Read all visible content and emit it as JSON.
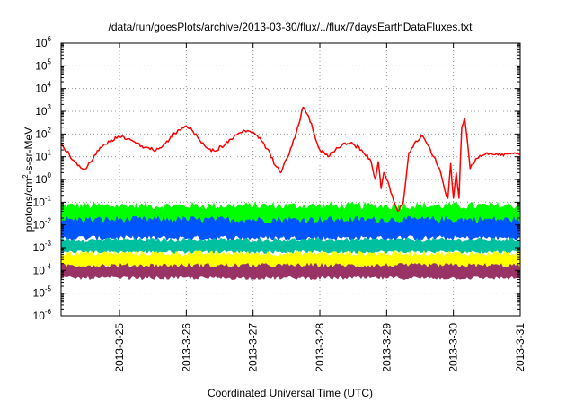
{
  "chart_data": {
    "type": "line",
    "title": "/data/run/goesPlots/archive/2013-03-30/flux/../flux/7daysEarthDataFluxes.txt",
    "xlabel": "Coordinated Universal Time (UTC)",
    "ylabel": "protons/cm²-s-sr-MeV",
    "ylabel_parts": {
      "pre": "protons/cm",
      "sup": "2",
      "post": "-s-sr-MeV"
    },
    "y_scale": "log",
    "ylim": [
      1e-06,
      1000000.0
    ],
    "y_ticks": [
      {
        "value": 1e-06,
        "base": "10",
        "exp": "-6"
      },
      {
        "value": 1e-05,
        "base": "10",
        "exp": "-5"
      },
      {
        "value": 0.0001,
        "base": "10",
        "exp": "-4"
      },
      {
        "value": 0.001,
        "base": "10",
        "exp": "-3"
      },
      {
        "value": 0.01,
        "base": "10",
        "exp": "-2"
      },
      {
        "value": 0.1,
        "base": "10",
        "exp": "-1"
      },
      {
        "value": 1.0,
        "base": "10",
        "exp": "0"
      },
      {
        "value": 10.0,
        "base": "10",
        "exp": "1"
      },
      {
        "value": 100.0,
        "base": "10",
        "exp": "2"
      },
      {
        "value": 1000.0,
        "base": "10",
        "exp": "3"
      },
      {
        "value": 10000.0,
        "base": "10",
        "exp": "4"
      },
      {
        "value": 100000.0,
        "base": "10",
        "exp": "5"
      },
      {
        "value": 1000000.0,
        "base": "10",
        "exp": "6"
      }
    ],
    "xlim": [
      "2013-03-24T03:00",
      "2013-03-31T00:00"
    ],
    "x_ticks": [
      "2013-3-25",
      "2013-3-26",
      "2013-3-27",
      "2013-3-28",
      "2013-3-29",
      "2013-3-30",
      "2013-3-31"
    ],
    "grid": true,
    "series": [
      {
        "color": "#ff0000",
        "style": "line",
        "points": [
          [
            "2013-03-24T03:00",
            40
          ],
          [
            "2013-03-24T06:00",
            12
          ],
          [
            "2013-03-24T09:00",
            4
          ],
          [
            "2013-03-24T12:00",
            3
          ],
          [
            "2013-03-24T15:00",
            12
          ],
          [
            "2013-03-24T18:00",
            30
          ],
          [
            "2013-03-24T21:00",
            55
          ],
          [
            "2013-03-25T00:00",
            75
          ],
          [
            "2013-03-25T04:00",
            55
          ],
          [
            "2013-03-25T08:00",
            30
          ],
          [
            "2013-03-25T12:00",
            20
          ],
          [
            "2013-03-25T15:00",
            25
          ],
          [
            "2013-03-25T18:00",
            60
          ],
          [
            "2013-03-25T21:00",
            150
          ],
          [
            "2013-03-26T00:00",
            230
          ],
          [
            "2013-03-26T02:00",
            150
          ],
          [
            "2013-03-26T05:00",
            50
          ],
          [
            "2013-03-26T08:00",
            22
          ],
          [
            "2013-03-26T10:00",
            18
          ],
          [
            "2013-03-26T14:00",
            35
          ],
          [
            "2013-03-26T18:00",
            90
          ],
          [
            "2013-03-26T21:00",
            140
          ],
          [
            "2013-03-27T00:00",
            120
          ],
          [
            "2013-03-27T03:00",
            50
          ],
          [
            "2013-03-27T06:00",
            15
          ],
          [
            "2013-03-27T08:00",
            4
          ],
          [
            "2013-03-27T10:00",
            2
          ],
          [
            "2013-03-27T12:00",
            8
          ],
          [
            "2013-03-27T14:00",
            30
          ],
          [
            "2013-03-27T16:00",
            200
          ],
          [
            "2013-03-27T18:00",
            1500
          ],
          [
            "2013-03-27T20:00",
            600
          ],
          [
            "2013-03-27T22:00",
            100
          ],
          [
            "2013-03-28T00:00",
            20
          ],
          [
            "2013-03-28T03:00",
            10
          ],
          [
            "2013-03-28T06:00",
            25
          ],
          [
            "2013-03-28T09:00",
            40
          ],
          [
            "2013-03-28T12:00",
            35
          ],
          [
            "2013-03-28T15:00",
            20
          ],
          [
            "2013-03-28T18:00",
            8
          ],
          [
            "2013-03-28T20:00",
            1
          ],
          [
            "2013-03-28T21:00",
            6
          ],
          [
            "2013-03-28T22:00",
            0.4
          ],
          [
            "2013-03-28T23:00",
            2
          ],
          [
            "2013-03-29T00:00",
            1
          ],
          [
            "2013-03-29T01:00",
            0.5
          ],
          [
            "2013-03-29T02:00",
            0.2
          ],
          [
            "2013-03-29T04:00",
            0.04
          ],
          [
            "2013-03-29T06:00",
            0.1
          ],
          [
            "2013-03-29T08:00",
            15
          ],
          [
            "2013-03-29T10:00",
            40
          ],
          [
            "2013-03-29T13:00",
            80
          ],
          [
            "2013-03-29T15:00",
            30
          ],
          [
            "2013-03-29T17:00",
            10
          ],
          [
            "2013-03-29T19:00",
            3
          ],
          [
            "2013-03-29T20:00",
            1
          ],
          [
            "2013-03-29T21:00",
            0.3
          ],
          [
            "2013-03-29T22:00",
            0.15
          ],
          [
            "2013-03-29T23:00",
            5
          ],
          [
            "2013-03-30T00:00",
            0.15
          ],
          [
            "2013-03-30T01:00",
            2
          ],
          [
            "2013-03-30T02:00",
            0.15
          ],
          [
            "2013-03-30T03:00",
            200
          ],
          [
            "2013-03-30T04:00",
            500
          ],
          [
            "2013-03-30T05:00",
            50
          ],
          [
            "2013-03-30T06:00",
            3
          ],
          [
            "2013-03-30T08:00",
            8
          ],
          [
            "2013-03-30T12:00",
            15
          ],
          [
            "2013-03-30T16:00",
            12
          ],
          [
            "2013-03-30T20:00",
            14
          ],
          [
            "2013-03-31T00:00",
            13
          ]
        ]
      },
      {
        "color": "#00ff00",
        "style": "band",
        "low": 0.01,
        "high": 0.06
      },
      {
        "color": "#0055ff",
        "style": "band",
        "low": 0.003,
        "high": 0.015
      },
      {
        "color": "#00c0a0",
        "style": "band",
        "low": 0.0007,
        "high": 0.002
      },
      {
        "color": "#ffff00",
        "style": "band",
        "low": 0.00015,
        "high": 0.0005
      },
      {
        "color": "#993366",
        "style": "band",
        "low": 5e-05,
        "high": 0.00015
      }
    ]
  }
}
